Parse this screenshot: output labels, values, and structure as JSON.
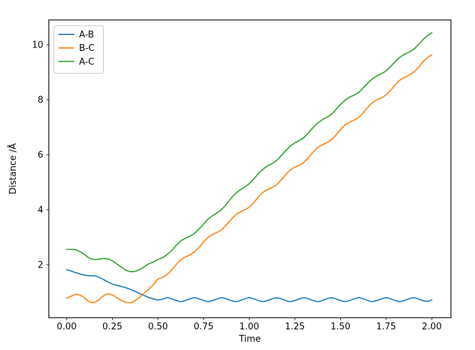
{
  "figure": {
    "background": "#ffffff",
    "text_color": "#000000",
    "spine_color": "#000000"
  },
  "chart_data": {
    "type": "line",
    "title": "",
    "xlabel": "Time",
    "ylabel": "Distance /Å",
    "xlim": [
      -0.098,
      2.105
    ],
    "ylim": [
      0.075,
      10.9
    ],
    "grid": false,
    "xticks": {
      "values": [
        0,
        0.25,
        0.5,
        0.75,
        1.0,
        1.25,
        1.5,
        1.75,
        2.0
      ],
      "labels": [
        "0.00",
        "0.25",
        "0.50",
        "0.75",
        "1.00",
        "1.25",
        "1.50",
        "1.75",
        "2.00"
      ]
    },
    "yticks": {
      "values": [
        2,
        4,
        6,
        8,
        10
      ],
      "labels": [
        "2",
        "4",
        "6",
        "8",
        "10"
      ]
    },
    "legend": {
      "position": "upper-left",
      "frame_color": "#cccccc",
      "face_color": "#ffffff"
    },
    "x": [
      0,
      0.025,
      0.05,
      0.075,
      0.1,
      0.125,
      0.15,
      0.175,
      0.2,
      0.225,
      0.25,
      0.275,
      0.3,
      0.325,
      0.35,
      0.375,
      0.4,
      0.425,
      0.45,
      0.475,
      0.5,
      0.525,
      0.55,
      0.575,
      0.6,
      0.625,
      0.65,
      0.675,
      0.7,
      0.725,
      0.75,
      0.775,
      0.8,
      0.825,
      0.85,
      0.875,
      0.9,
      0.925,
      0.95,
      0.975,
      1.0,
      1.025,
      1.05,
      1.075,
      1.1,
      1.125,
      1.15,
      1.175,
      1.2,
      1.225,
      1.25,
      1.275,
      1.3,
      1.325,
      1.35,
      1.375,
      1.4,
      1.425,
      1.45,
      1.475,
      1.5,
      1.525,
      1.55,
      1.575,
      1.6,
      1.625,
      1.65,
      1.675,
      1.7,
      1.725,
      1.75,
      1.775,
      1.8,
      1.825,
      1.85,
      1.875,
      1.9,
      1.925,
      1.95,
      1.975,
      2.0
    ],
    "series": [
      {
        "name": "A-B",
        "color": "#1f77b4",
        "values": [
          1.82,
          1.77,
          1.71,
          1.66,
          1.62,
          1.6,
          1.6,
          1.55,
          1.47,
          1.38,
          1.3,
          1.25,
          1.21,
          1.16,
          1.1,
          1.03,
          0.95,
          0.88,
          0.81,
          0.76,
          0.72,
          0.75,
          0.8,
          0.76,
          0.7,
          0.66,
          0.7,
          0.76,
          0.8,
          0.76,
          0.7,
          0.66,
          0.7,
          0.76,
          0.8,
          0.76,
          0.7,
          0.66,
          0.7,
          0.76,
          0.8,
          0.76,
          0.7,
          0.66,
          0.7,
          0.76,
          0.8,
          0.76,
          0.7,
          0.66,
          0.7,
          0.76,
          0.8,
          0.76,
          0.7,
          0.66,
          0.7,
          0.76,
          0.8,
          0.76,
          0.7,
          0.66,
          0.7,
          0.76,
          0.8,
          0.76,
          0.7,
          0.66,
          0.7,
          0.76,
          0.8,
          0.76,
          0.7,
          0.66,
          0.7,
          0.76,
          0.8,
          0.76,
          0.7,
          0.67,
          0.72
        ]
      },
      {
        "name": "B-C",
        "color": "#ff7f0e",
        "values": [
          0.78,
          0.86,
          0.92,
          0.89,
          0.78,
          0.65,
          0.63,
          0.72,
          0.86,
          0.94,
          0.9,
          0.8,
          0.7,
          0.63,
          0.62,
          0.7,
          0.82,
          0.97,
          1.12,
          1.28,
          1.47,
          1.54,
          1.65,
          1.81,
          2.01,
          2.18,
          2.28,
          2.36,
          2.47,
          2.63,
          2.83,
          2.99,
          3.1,
          3.18,
          3.28,
          3.45,
          3.64,
          3.81,
          3.92,
          3.99,
          4.1,
          4.26,
          4.46,
          4.63,
          4.73,
          4.81,
          4.91,
          5.08,
          5.28,
          5.44,
          5.55,
          5.62,
          5.73,
          5.9,
          6.09,
          6.26,
          6.36,
          6.44,
          6.55,
          6.71,
          6.91,
          7.08,
          7.18,
          7.26,
          7.36,
          7.53,
          7.73,
          7.89,
          8.0,
          8.07,
          8.18,
          8.35,
          8.54,
          8.71,
          8.81,
          8.89,
          9.0,
          9.16,
          9.36,
          9.52,
          9.63
        ]
      },
      {
        "name": "A-C",
        "color": "#2ca02c",
        "values": [
          2.56,
          2.56,
          2.54,
          2.47,
          2.36,
          2.24,
          2.19,
          2.2,
          2.22,
          2.21,
          2.14,
          2.03,
          1.91,
          1.8,
          1.75,
          1.76,
          1.83,
          1.93,
          2.03,
          2.1,
          2.19,
          2.26,
          2.37,
          2.52,
          2.7,
          2.86,
          2.96,
          3.04,
          3.14,
          3.3,
          3.48,
          3.66,
          3.79,
          3.89,
          4.02,
          4.2,
          4.41,
          4.59,
          4.72,
          4.82,
          4.95,
          5.12,
          5.31,
          5.47,
          5.59,
          5.68,
          5.79,
          5.96,
          6.15,
          6.31,
          6.43,
          6.52,
          6.63,
          6.8,
          6.99,
          7.15,
          7.27,
          7.36,
          7.47,
          7.64,
          7.83,
          7.98,
          8.09,
          8.17,
          8.27,
          8.43,
          8.61,
          8.76,
          8.87,
          8.95,
          9.05,
          9.21,
          9.39,
          9.54,
          9.65,
          9.73,
          9.83,
          9.99,
          10.17,
          10.32,
          10.43
        ]
      }
    ]
  }
}
